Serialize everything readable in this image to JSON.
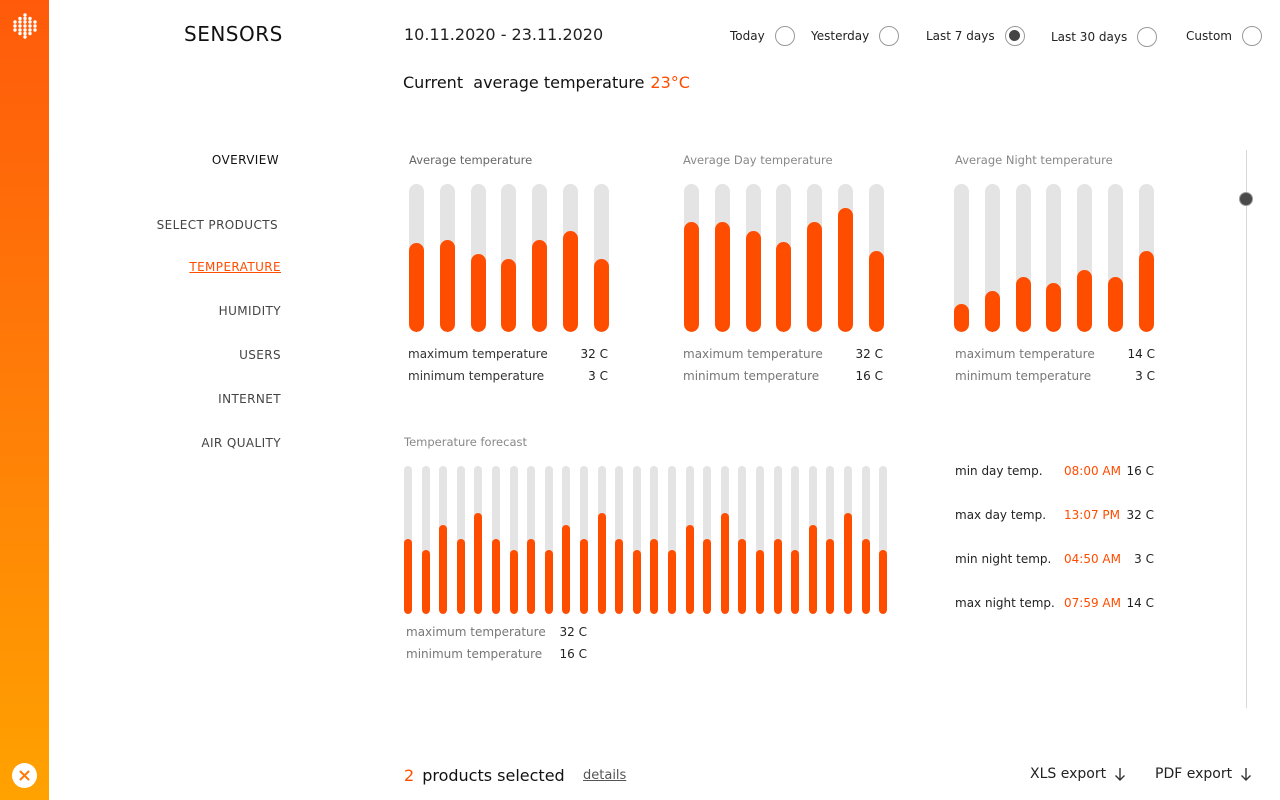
{
  "app": {
    "title": "SENSORS",
    "date_range": "10.11.2020 - 23.11.2020"
  },
  "current": {
    "label": "Current  average temperature",
    "value": "23°C"
  },
  "period_options": [
    {
      "label": "Today",
      "selected": false
    },
    {
      "label": "Yesterday",
      "selected": false
    },
    {
      "label": "Last 7 days",
      "selected": true
    },
    {
      "label": "Last 30 days",
      "selected": false
    },
    {
      "label": "Custom",
      "selected": false
    }
  ],
  "nav": {
    "overview": "OVERVIEW",
    "items": [
      "SELECT PRODUCTS",
      "TEMPERATURE",
      "HUMIDITY",
      "USERS",
      "INTERNET",
      "AIR QUALITY"
    ],
    "active": "TEMPERATURE"
  },
  "charts": {
    "avg": {
      "title": "Average temperature",
      "levels": [
        0.6,
        0.62,
        0.53,
        0.49,
        0.62,
        0.68,
        0.49
      ],
      "max_label": "maximum temperature",
      "max_value": "32 C",
      "min_label": "minimum temperature",
      "min_value": "3 C"
    },
    "day": {
      "title": "Average Day temperature",
      "levels": [
        0.74,
        0.74,
        0.68,
        0.61,
        0.74,
        0.84,
        0.55
      ],
      "max_label": "maximum temperature",
      "max_value": "32 C",
      "min_label": "minimum temperature",
      "min_value": "16 C"
    },
    "night": {
      "title": "Average Night temperature",
      "levels": [
        0.19,
        0.28,
        0.37,
        0.33,
        0.42,
        0.37,
        0.55
      ],
      "max_label": "maximum temperature",
      "max_value": "14 C",
      "min_label": "minimum temperature",
      "min_value": "3 C"
    },
    "forecast": {
      "title": "Temperature forecast",
      "levels": [
        0.51,
        0.43,
        0.6,
        0.51,
        0.68,
        0.51,
        0.43,
        0.51,
        0.43,
        0.6,
        0.51,
        0.68,
        0.51,
        0.43,
        0.51,
        0.43,
        0.6,
        0.51,
        0.68,
        0.51,
        0.43,
        0.51,
        0.43,
        0.6,
        0.51,
        0.68,
        0.51,
        0.43
      ],
      "max_label": "maximum temperature",
      "max_value": "32 C",
      "min_label": "minimum temperature",
      "min_value": "16 C"
    }
  },
  "forecast_details": [
    {
      "label": "min day temp.",
      "time": "08:00 AM",
      "value": "16 C"
    },
    {
      "label": "max day temp.",
      "time": "13:07 PM",
      "value": "32 C"
    },
    {
      "label": "min night temp.",
      "time": "04:50 AM",
      "value": "3 C"
    },
    {
      "label": "max night temp.",
      "time": "07:59 AM",
      "value": "14 C"
    }
  ],
  "footer": {
    "count": "2",
    "count_label": "products selected",
    "details": "details",
    "xls": "XLS export",
    "pdf": "PDF export"
  },
  "colors": {
    "accent": "#ff4d00",
    "track": "#e4e4e4",
    "rail_top": "#ff5a0a",
    "rail_bottom": "#ffa200"
  },
  "icons": {
    "logo": "dots-grid-logo",
    "close": "close-icon",
    "download": "arrow-down-icon"
  }
}
